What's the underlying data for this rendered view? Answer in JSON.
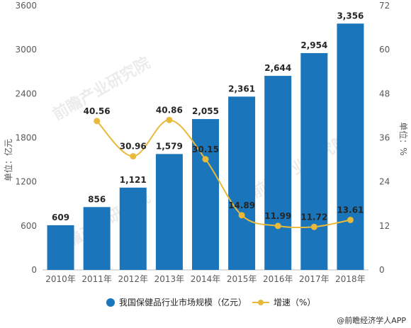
{
  "colors": {
    "bar": "#1a75bb",
    "line": "#e8b93a",
    "axis": "#bfbfbf",
    "text": "#595959"
  },
  "source": "@前瞻经济学人APP",
  "chart_data": {
    "type": "bar",
    "categories": [
      "2010年",
      "2011年",
      "2012年",
      "2013年",
      "2014年",
      "2015年",
      "2016年",
      "2017年",
      "2018年"
    ],
    "series": [
      {
        "name": "我国保健品行业市场规模（亿元）",
        "type": "bar",
        "axis": "left",
        "values": [
          609,
          856,
          1121,
          1579,
          2055,
          2361,
          2644,
          2954,
          3356
        ],
        "labels": [
          "609",
          "856",
          "1,121",
          "1,579",
          "2,055",
          "2,361",
          "2,644",
          "2,954",
          "3,356"
        ]
      },
      {
        "name": "增速（%）",
        "type": "line",
        "axis": "right",
        "values": [
          null,
          40.56,
          30.96,
          40.86,
          30.15,
          14.89,
          11.99,
          11.72,
          13.61
        ],
        "labels": [
          "",
          "40.56",
          "30.96",
          "40.86",
          "30.15",
          "14.89",
          "11.99",
          "11.72",
          "13.61"
        ]
      }
    ],
    "ylabel": "单位：亿元",
    "y2label": "单位：%",
    "ylim": [
      0,
      3600
    ],
    "y2lim": [
      0,
      72
    ],
    "yticks": [
      "0",
      "600",
      "1200",
      "1800",
      "2400",
      "3000",
      "3600"
    ],
    "y2ticks": [
      "0",
      "12",
      "24",
      "36",
      "48",
      "60",
      "72"
    ],
    "legend": "bottom",
    "grid": false
  },
  "watermark": {
    "text": "前瞻产业研究院"
  }
}
